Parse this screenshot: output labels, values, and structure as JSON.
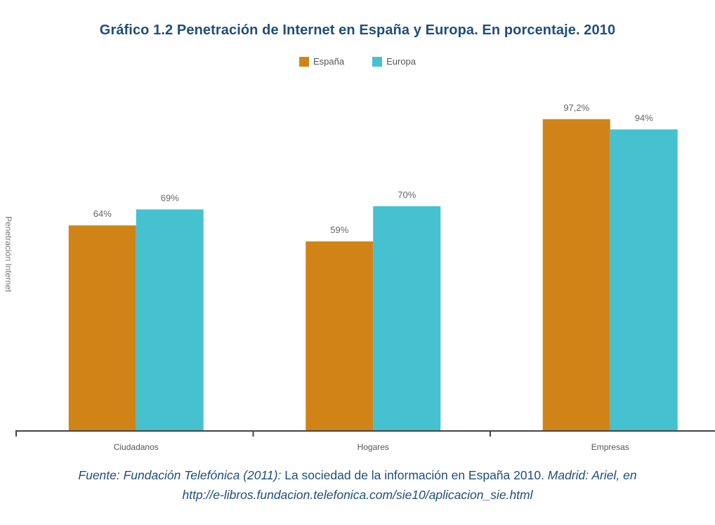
{
  "chart_data": {
    "type": "bar",
    "title": "Gráfico 1.2   Penetración de Internet en España y Europa. En porcentaje. 2010",
    "xlabel": "",
    "ylabel": "Penetración Internet",
    "ylim": [
      0,
      100
    ],
    "grid": false,
    "legend_position": "top-center",
    "categories": [
      "Ciudadanos",
      "Hogares",
      "Empresas"
    ],
    "series": [
      {
        "name": "España",
        "color": "#d08418",
        "values": [
          64,
          59,
          97.2
        ],
        "labels": [
          "64%",
          "59%",
          "97,2%"
        ]
      },
      {
        "name": "Europa",
        "color": "#45c1d0",
        "values": [
          69,
          70,
          94
        ],
        "labels": [
          "69%",
          "70%",
          "94%"
        ]
      }
    ]
  },
  "source": {
    "part1_italic": "Fuente: Fundación Telefónica (2011):",
    "part2": " La sociedad de la información en España 2010.",
    "part3_italic": " Madrid: Ariel, en",
    "line2_italic": "http://e-libros.fundacion.telefonica.com/sie10/aplicacion_sie.html"
  }
}
